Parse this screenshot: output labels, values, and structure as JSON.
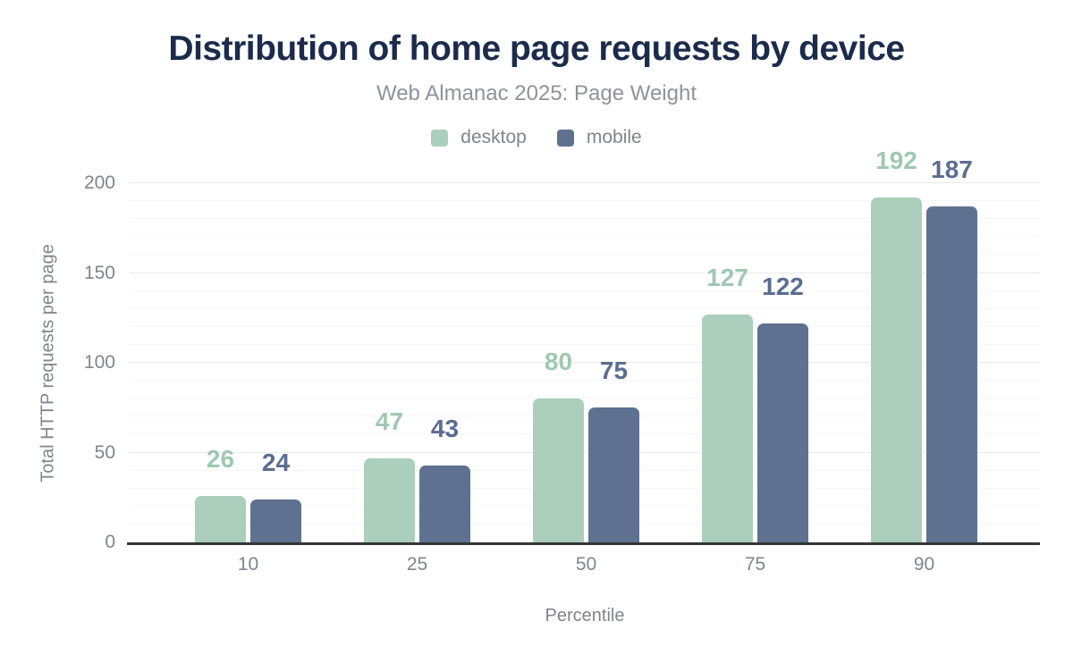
{
  "chart": {
    "title": "Distribution of home page requests by device",
    "subtitle": "Web Almanac 2025: Page Weight",
    "xlabel": "Percentile",
    "ylabel": "Total HTTP requests per page"
  },
  "chart_data": {
    "type": "bar",
    "title": "Distribution of home page requests by device",
    "subtitle": "Web Almanac 2025: Page Weight",
    "xlabel": "Percentile",
    "ylabel": "Total HTTP requests per page",
    "categories": [
      "10",
      "25",
      "50",
      "75",
      "90"
    ],
    "series": [
      {
        "name": "desktop",
        "values": [
          26,
          47,
          80,
          127,
          192
        ],
        "color": "#abcfbc",
        "label_color": "#9fc8b1"
      },
      {
        "name": "mobile",
        "values": [
          24,
          43,
          75,
          122,
          187
        ],
        "color": "#5e7190",
        "label_color": "#5a6d90"
      }
    ],
    "ylim": [
      0,
      200
    ],
    "y_ticks": [
      0,
      50,
      100,
      150,
      200
    ],
    "minor_grid_step": 10,
    "grid": true,
    "legend_position": "top",
    "data_labels": true
  },
  "colors": {
    "title": "#1b2b4b",
    "subtitle": "#8d9399",
    "axis_text": "#7e858c",
    "axis_line": "#343434",
    "grid_major": "#e9e9eb",
    "grid_minor": "#f5f5f6",
    "background": "#ffffff"
  }
}
